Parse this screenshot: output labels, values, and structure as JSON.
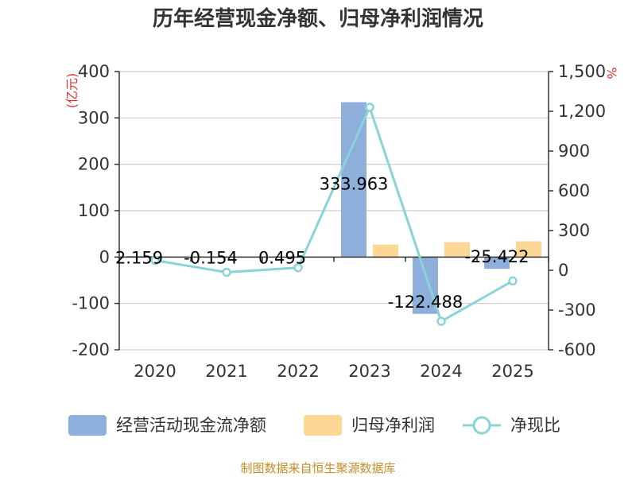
{
  "title": "历年经营现金净额、归母净利润情况",
  "source": "制图数据来自恒生聚源数据库",
  "colors": {
    "cashflow": "#8eaedb",
    "profit": "#fdd795",
    "ratio": "#8ad3d8",
    "grid": "#cccccc",
    "axis": "#333333"
  },
  "chart_data": {
    "type": "bar",
    "title": "历年经营现金净额、归母净利润情况",
    "categories": [
      "2020",
      "2021",
      "2022",
      "2023",
      "2024",
      "2025"
    ],
    "left_axis": {
      "unit": "(亿元)",
      "ylim": [
        -200,
        400
      ],
      "ticks": [
        "400",
        "300",
        "200",
        "100",
        "0",
        "-100",
        "-200"
      ],
      "tick_values": [
        400,
        300,
        200,
        100,
        0,
        -100,
        -200
      ]
    },
    "right_axis": {
      "unit": "%",
      "ylim": [
        -600,
        1500
      ],
      "ticks": [
        "1,500",
        "1,200",
        "900",
        "600",
        "300",
        "0",
        "-300",
        "-600"
      ],
      "tick_values": [
        1500,
        1200,
        900,
        600,
        300,
        0,
        -300,
        -600
      ]
    },
    "series": [
      {
        "name": "经营活动现金流净额",
        "type": "bar",
        "axis": "left",
        "values": [
          2.159,
          -0.154,
          0.495,
          333.963,
          -122.488,
          -25.422
        ],
        "labels": [
          "2.159",
          "-0.154",
          "0.495",
          "333.963",
          "-122.488",
          "-25.422"
        ]
      },
      {
        "name": "归母净利润",
        "type": "bar",
        "axis": "left",
        "values": [
          1.2,
          1.0,
          1.1,
          27,
          32,
          34
        ]
      },
      {
        "name": "净现比",
        "type": "line",
        "axis": "right",
        "values": [
          75,
          -15,
          20,
          1230,
          -385,
          -80
        ]
      }
    ],
    "grid": true,
    "legend_position": "bottom"
  }
}
